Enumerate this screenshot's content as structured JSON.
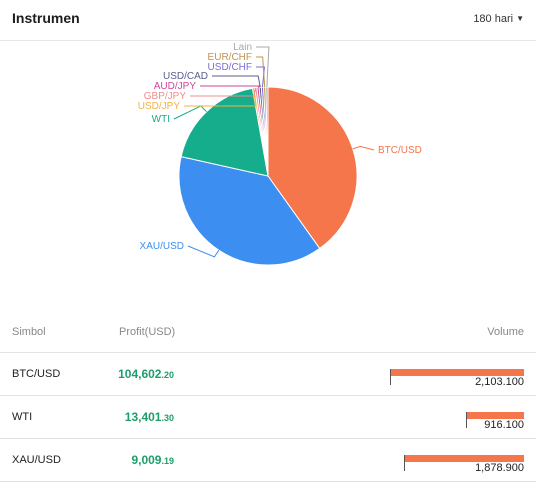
{
  "header": {
    "title": "Instrumen",
    "period_label": "180 hari"
  },
  "chart_data": {
    "type": "pie",
    "slices": [
      {
        "name": "BTC/USD",
        "value": 104602.2,
        "color": "#f4764a"
      },
      {
        "name": "XAU/USD",
        "value": 9009.19,
        "color": "#3c8ff0"
      },
      {
        "name": "WTI",
        "value": 13401.3,
        "color": "#15ad8b"
      },
      {
        "name": "USD/JPY",
        "value": 0,
        "color": "#f2b33d"
      },
      {
        "name": "GBP/JPY",
        "value": 0,
        "color": "#f08c8c"
      },
      {
        "name": "AUD/JPY",
        "value": 0,
        "color": "#d1459a"
      },
      {
        "name": "USD/CAD",
        "value": 0,
        "color": "#5b5d8c"
      },
      {
        "name": "USD/CHF",
        "value": 0,
        "color": "#7a6ed6"
      },
      {
        "name": "EUR/CHF",
        "value": 0,
        "color": "#c0934e"
      },
      {
        "name": "Lain",
        "value": 0,
        "color": "#a8a8a8"
      }
    ],
    "shares": [
      0.403,
      0.385,
      0.188,
      0.004,
      0.004,
      0.004,
      0.004,
      0.004,
      0.004,
      0.004
    ]
  },
  "table": {
    "col_symbol": "Simbol",
    "col_profit": "Profit(USD)",
    "col_volume": "Volume",
    "rows": [
      {
        "symbol": "BTC/USD",
        "profit_int": "104,602",
        "profit_dec": ".20",
        "volume": "2,103.100",
        "volume_value": 2103.1
      },
      {
        "symbol": "WTI",
        "profit_int": "13,401",
        "profit_dec": ".30",
        "volume": "916.100",
        "volume_value": 916.1
      },
      {
        "symbol": "XAU/USD",
        "profit_int": "9,009",
        "profit_dec": ".19",
        "volume": "1,878.900",
        "volume_value": 1878.9
      }
    ]
  }
}
